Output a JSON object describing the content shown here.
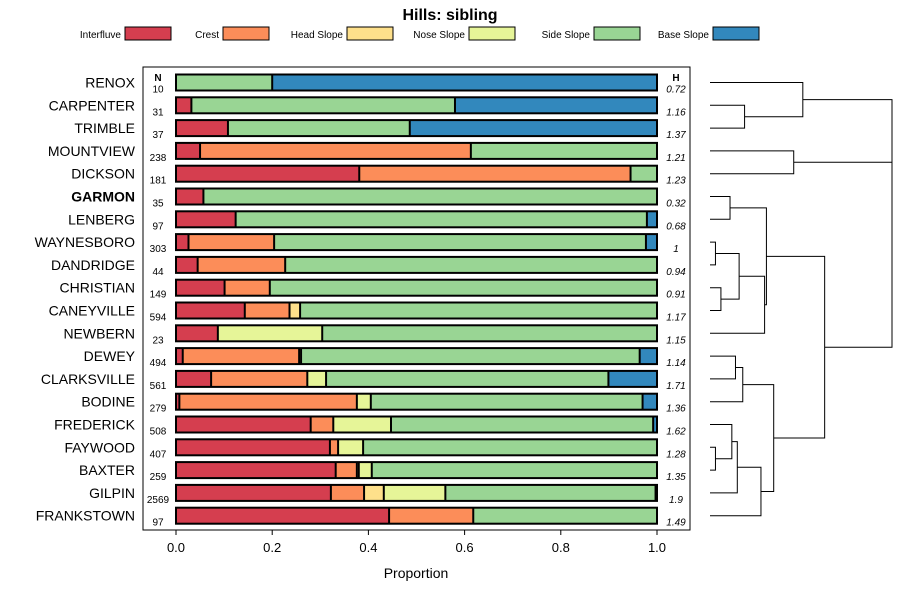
{
  "chart_data": {
    "type": "bar",
    "stacked": true,
    "orientation": "horizontal",
    "title": "Hills: sibling",
    "xlabel": "Proportion",
    "xlim": [
      0,
      1
    ],
    "xticks": [
      "0.0",
      "0.2",
      "0.4",
      "0.6",
      "0.8",
      "1.0"
    ],
    "n_header": "N",
    "h_header": "H",
    "highlight": "GARMON",
    "legend": [
      {
        "name": "Interfluve",
        "color": "#D53E4F"
      },
      {
        "name": "Crest",
        "color": "#FC8D59"
      },
      {
        "name": "Head Slope",
        "color": "#FEE08B"
      },
      {
        "name": "Nose Slope",
        "color": "#E6F598"
      },
      {
        "name": "Side Slope",
        "color": "#99D594"
      },
      {
        "name": "Base Slope",
        "color": "#3288BD"
      }
    ],
    "rows": [
      {
        "name": "RENOX",
        "n": "10",
        "h": "0.72",
        "values": [
          0,
          0,
          0,
          0,
          0.2,
          0.8
        ]
      },
      {
        "name": "CARPENTER",
        "n": "31",
        "h": "1.16",
        "values": [
          0.032,
          0,
          0,
          0,
          0.548,
          0.42
        ]
      },
      {
        "name": "TRIMBLE",
        "n": "37",
        "h": "1.37",
        "values": [
          0.108,
          0,
          0,
          0,
          0.378,
          0.514
        ]
      },
      {
        "name": "MOUNTVIEW",
        "n": "238",
        "h": "1.21",
        "values": [
          0.05,
          0.563,
          0,
          0,
          0.387,
          0
        ]
      },
      {
        "name": "DICKSON",
        "n": "181",
        "h": "1.23",
        "values": [
          0.381,
          0.564,
          0,
          0,
          0.055,
          0
        ]
      },
      {
        "name": "GARMON",
        "n": "35",
        "h": "0.32",
        "values": [
          0.057,
          0,
          0,
          0,
          0.943,
          0
        ]
      },
      {
        "name": "LENBERG",
        "n": "97",
        "h": "0.68",
        "values": [
          0.124,
          0,
          0,
          0,
          0.855,
          0.021
        ]
      },
      {
        "name": "WAYNESBORO",
        "n": "303",
        "h": "1",
        "values": [
          0.026,
          0.178,
          0,
          0,
          0.773,
          0.023
        ]
      },
      {
        "name": "DANDRIDGE",
        "n": "44",
        "h": "0.94",
        "values": [
          0.045,
          0.182,
          0,
          0,
          0.773,
          0
        ]
      },
      {
        "name": "CHRISTIAN",
        "n": "149",
        "h": "0.91",
        "values": [
          0.101,
          0.094,
          0,
          0,
          0.805,
          0
        ]
      },
      {
        "name": "CANEYVILLE",
        "n": "594",
        "h": "1.17",
        "values": [
          0.143,
          0.093,
          0.022,
          0,
          0.742,
          0
        ]
      },
      {
        "name": "NEWBERN",
        "n": "23",
        "h": "1.15",
        "values": [
          0.087,
          0,
          0,
          0.217,
          0.696,
          0
        ]
      },
      {
        "name": "DEWEY",
        "n": "494",
        "h": "1.14",
        "values": [
          0.014,
          0.242,
          0.004,
          0,
          0.704,
          0.036
        ]
      },
      {
        "name": "CLARKSVILLE",
        "n": "561",
        "h": "1.71",
        "values": [
          0.073,
          0.2,
          0,
          0.039,
          0.587,
          0.101
        ]
      },
      {
        "name": "BODINE",
        "n": "279",
        "h": "1.36",
        "values": [
          0.007,
          0.369,
          0,
          0.029,
          0.565,
          0.03
        ]
      },
      {
        "name": "FREDERICK",
        "n": "508",
        "h": "1.62",
        "values": [
          0.28,
          0.047,
          0,
          0.12,
          0.545,
          0.008
        ]
      },
      {
        "name": "FAYWOOD",
        "n": "407",
        "h": "1.28",
        "values": [
          0.32,
          0.017,
          0,
          0.052,
          0.611,
          0
        ]
      },
      {
        "name": "BAXTER",
        "n": "259",
        "h": "1.35",
        "values": [
          0.332,
          0.044,
          0.004,
          0.027,
          0.593,
          0
        ]
      },
      {
        "name": "GILPIN",
        "n": "2569",
        "h": "1.9",
        "values": [
          0.322,
          0.069,
          0.041,
          0.128,
          0.437,
          0.003
        ]
      },
      {
        "name": "FRANKSTOWN",
        "n": "97",
        "h": "1.49",
        "values": [
          0.443,
          0.175,
          0,
          0,
          0.382,
          0
        ]
      }
    ],
    "dendrogram": {
      "leaf_order": [
        "RENOX",
        "CARPENTER",
        "TRIMBLE",
        "MOUNTVIEW",
        "DICKSON",
        "GARMON",
        "LENBERG",
        "WAYNESBORO",
        "DANDRIDGE",
        "CHRISTIAN",
        "CANEYVILLE",
        "NEWBERN",
        "DEWEY",
        "CLARKSVILLE",
        "BODINE",
        "FREDERICK",
        "FAYWOOD",
        "BAXTER",
        "GILPIN",
        "FRANKSTOWN"
      ],
      "merges": [
        {
          "a": "CARPENTER",
          "b": "TRIMBLE",
          "height": 0.19
        },
        {
          "a": "RENOX",
          "b": 0,
          "height": 0.51
        },
        {
          "a": "MOUNTVIEW",
          "b": "DICKSON",
          "height": 0.46
        },
        {
          "a": 1,
          "b": 2,
          "height": 1.0
        },
        {
          "a": "GARMON",
          "b": "LENBERG",
          "height": 0.11
        },
        {
          "a": "WAYNESBORO",
          "b": "DANDRIDGE",
          "height": 0.03
        },
        {
          "a": "CHRISTIAN",
          "b": "CANEYVILLE",
          "height": 0.06
        },
        {
          "a": 5,
          "b": 6,
          "height": 0.16
        },
        {
          "a": 7,
          "b": "NEWBERN",
          "height": 0.3
        },
        {
          "a": 4,
          "b": 8,
          "height": 0.31
        },
        {
          "a": "DEWEY",
          "b": "CLARKSVILLE",
          "height": 0.14
        },
        {
          "a": 10,
          "b": "BODINE",
          "height": 0.18
        },
        {
          "a": "FAYWOOD",
          "b": "BAXTER",
          "height": 0.03
        },
        {
          "a": "FREDERICK",
          "b": 12,
          "height": 0.12
        },
        {
          "a": 13,
          "b": "GILPIN",
          "height": 0.15
        },
        {
          "a": 14,
          "b": "FRANKSTOWN",
          "height": 0.28
        },
        {
          "a": 11,
          "b": 15,
          "height": 0.35
        },
        {
          "a": 9,
          "b": 16,
          "height": 0.63
        },
        {
          "a": 3,
          "b": 17,
          "height": 1.0
        }
      ]
    }
  }
}
